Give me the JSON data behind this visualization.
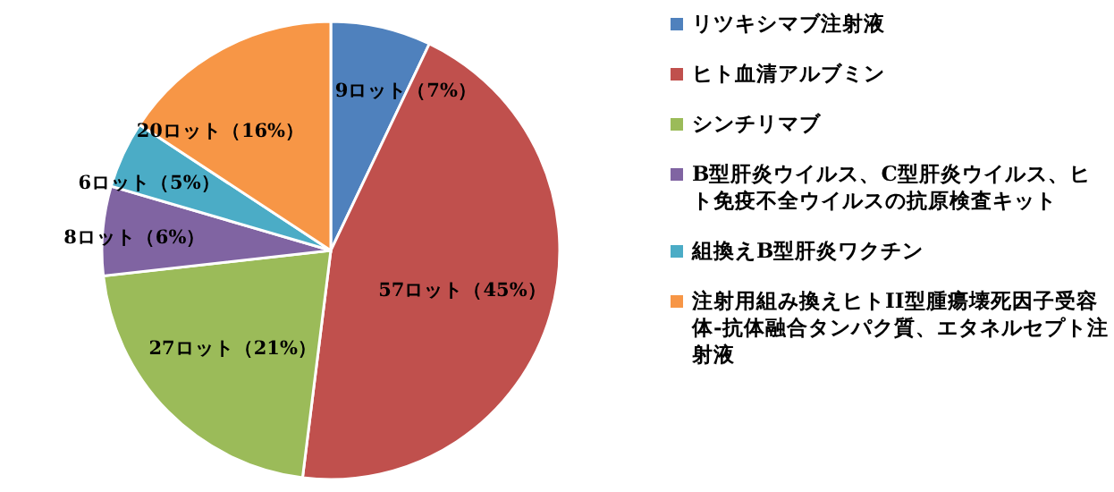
{
  "chart_data": {
    "type": "pie",
    "categories": [
      "リツキシマブ注射液",
      "ヒト血清アルブミン",
      "シンチリマブ",
      "B型肝炎ウイルス、C型肝炎ウイルス、ヒト免疫不全ウイルスの抗原検査キット",
      "組換えB型肝炎ワクチン",
      "注射用組み換えヒトII型腫瘍壊死因子受容体-抗体融合タンパク質、エタネルセプト注射液"
    ],
    "values": [
      9,
      57,
      27,
      8,
      6,
      20
    ],
    "colors": [
      "#4f81bd",
      "#c0504d",
      "#9bbb59",
      "#8064a2",
      "#4bacc6",
      "#f79646"
    ],
    "value_labels": [
      "9ロット（7%）",
      "57ロット（45%）",
      "27ロット（21%）",
      "8ロット（6%）",
      "6ロット（5%）",
      "20ロット（16%）"
    ],
    "legend": "right"
  }
}
